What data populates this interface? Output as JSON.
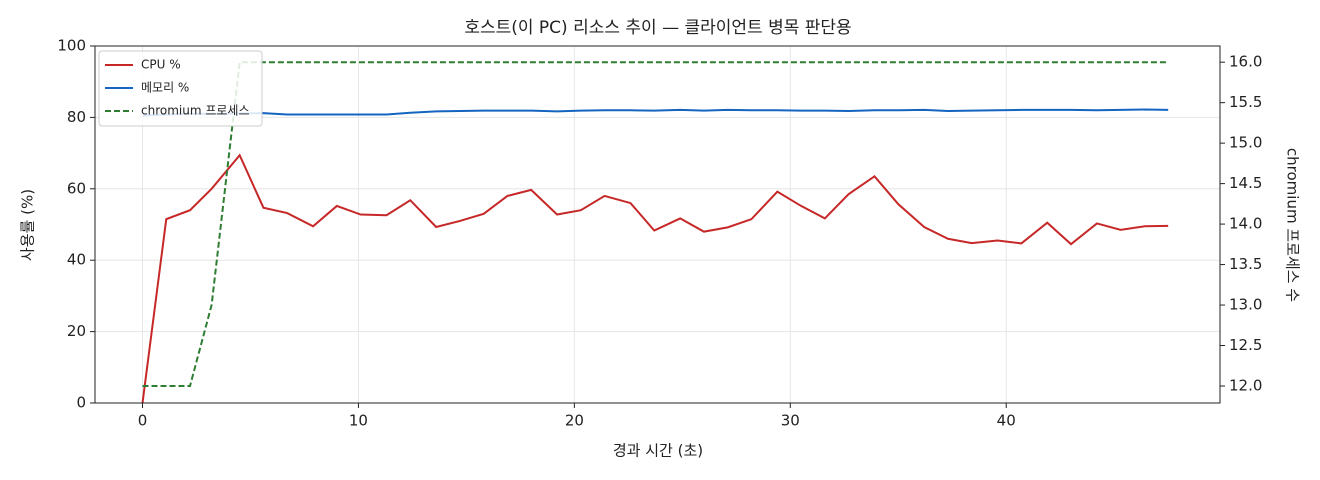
{
  "chart_data": {
    "type": "line",
    "title": "호스트(이 PC) 리소스 추이 — 클라이언트 병목 판단용",
    "x_label": "경과 시간 (초)",
    "y_label": "사용률 (%)",
    "y2_label": "chromium 프로세스 수",
    "x": [
      0,
      1.1,
      2.2,
      3.2,
      4.5,
      5.6,
      6.7,
      7.9,
      9.0,
      10.1,
      11.3,
      12.4,
      13.6,
      14.7,
      15.8,
      16.9,
      18.0,
      19.2,
      20.3,
      21.4,
      22.6,
      23.7,
      24.9,
      26.0,
      27.1,
      28.2,
      29.4,
      30.5,
      31.6,
      32.7,
      33.9,
      35.0,
      36.2,
      37.3,
      38.4,
      39.6,
      40.7,
      41.9,
      43.0,
      44.2,
      45.3,
      46.4,
      47.5
    ],
    "series": [
      {
        "name": "CPU %",
        "color": "#c62828",
        "linestyle": "solid",
        "values": [
          0,
          51.5,
          54,
          60,
          69.4,
          54.7,
          53.2,
          49.5,
          55.2,
          52.8,
          52.6,
          56.8,
          49.3,
          51,
          53,
          58,
          59.7,
          52.8,
          54,
          58,
          56,
          48.3,
          51.7,
          48,
          49.2,
          51.5,
          59.2,
          55.2,
          51.7,
          58.5,
          63.5,
          55.7,
          49.3,
          46,
          44.8,
          45.5,
          44.7,
          50.5,
          44.5,
          50.3,
          48.5,
          49.5,
          49.6
        ]
      },
      {
        "name": "메모리 %",
        "color": "#1565c0",
        "linestyle": "solid",
        "values": [
          80.5,
          80.8,
          81,
          81,
          81.1,
          81.2,
          80.8,
          80.8,
          80.8,
          80.8,
          80.8,
          81.3,
          81.7,
          81.8,
          81.9,
          81.9,
          81.9,
          81.7,
          81.9,
          82,
          82,
          81.9,
          82.1,
          81.9,
          82.1,
          82,
          82,
          81.9,
          81.9,
          81.8,
          82,
          82,
          82.1,
          81.8,
          81.9,
          82,
          82.1,
          82.1,
          82.1,
          82,
          82.1,
          82.2,
          82.1
        ]
      },
      {
        "name": "chromium 프로세스",
        "color": "#2e7d32",
        "linestyle": "dashed",
        "axis": "y2",
        "values": [
          12,
          12,
          12,
          13,
          16,
          16,
          16,
          16,
          16,
          16,
          16,
          16,
          16,
          16,
          16,
          16,
          16,
          16,
          16,
          16,
          16,
          16,
          16,
          16,
          16,
          16,
          16,
          16,
          16,
          16,
          16,
          16,
          16,
          16,
          16,
          16,
          16,
          16,
          16,
          16,
          16,
          16,
          16
        ]
      }
    ],
    "xlim": [
      -2.2,
      49.9
    ],
    "xticks": [
      0,
      10,
      20,
      30,
      40
    ],
    "ylim": [
      0,
      100
    ],
    "yticks": [
      0,
      20,
      40,
      60,
      80,
      100
    ],
    "y2lim": [
      11.79,
      16.2
    ],
    "y2ticks": [
      {
        "value": 12,
        "label": "12.0"
      },
      12.5,
      {
        "value": 13,
        "label": "13.0"
      },
      13.5,
      {
        "value": 14,
        "label": "14.0"
      },
      14.5,
      {
        "value": 15,
        "label": "15.0"
      },
      15.5,
      {
        "value": 16,
        "label": "16.0"
      }
    ],
    "grid": true,
    "legend": "upper left"
  }
}
